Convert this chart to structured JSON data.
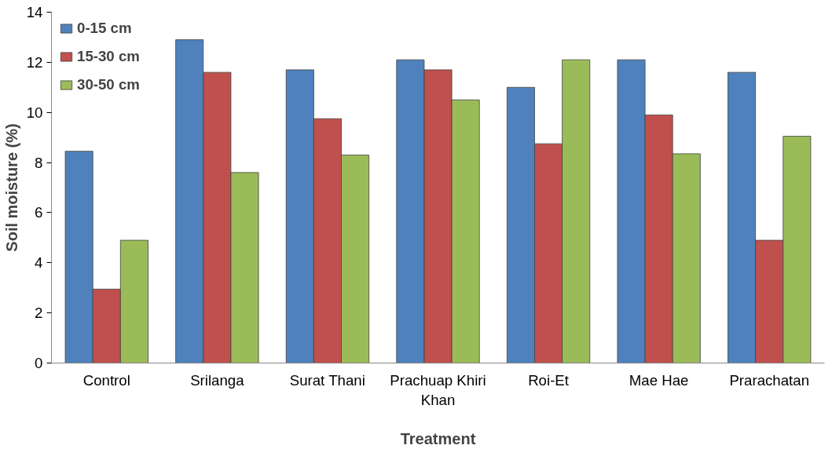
{
  "chart_data": {
    "type": "bar",
    "xlabel": "Treatment",
    "ylabel": "Soil moisture (%)",
    "categories": [
      "Control",
      "Srilanga",
      "Surat Thani",
      "Prachuap Khiri Khan",
      "Roi-Et",
      "Mae Hae",
      "Prarachatan"
    ],
    "series": [
      {
        "name": "0-15 cm",
        "color": "#4f81bd",
        "values": [
          8.45,
          12.9,
          11.7,
          12.1,
          11.0,
          12.1,
          11.6
        ]
      },
      {
        "name": "15-30 cm",
        "color": "#c0504d",
        "values": [
          2.95,
          11.6,
          9.75,
          11.7,
          8.75,
          9.9,
          4.9
        ]
      },
      {
        "name": "30-50 cm",
        "color": "#9bbb59",
        "values": [
          4.9,
          7.6,
          8.3,
          10.5,
          12.1,
          8.35,
          9.05
        ]
      }
    ],
    "ylim": [
      0,
      14
    ],
    "yticks": [
      0,
      2,
      4,
      6,
      8,
      10,
      12,
      14
    ],
    "grid": false,
    "legend": "top left"
  }
}
